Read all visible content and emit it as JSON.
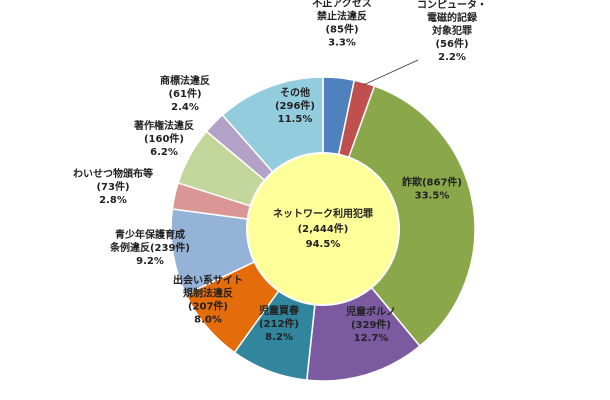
{
  "colors": {
    "background": "#ffffff",
    "center_fill": "#ffff99",
    "center_stroke": "#ffffff"
  },
  "chart_data": {
    "type": "pie",
    "style": "donut",
    "start_angle_deg": 0,
    "direction": "clockwise",
    "center": {
      "name": "ネットワーク利用犯罪",
      "count": "(2,444件)",
      "percent": "94.5%",
      "value": 94.5
    },
    "slices": [
      {
        "lines": [
          "不正アクセス",
          "禁止法違反",
          "(85件)",
          "3.3%"
        ],
        "value": 3.3,
        "color": "#4f81bd",
        "label_outside": true
      },
      {
        "lines": [
          "コンピュータ・",
          "電磁的記録",
          "対象犯罪",
          "(56件)",
          "2.2%"
        ],
        "value": 2.2,
        "color": "#c0504d",
        "label_outside": true
      },
      {
        "lines": [
          "詐欺(867件)",
          "33.5%"
        ],
        "value": 33.5,
        "color": "#8aa84a",
        "label_outside": false
      },
      {
        "lines": [
          "児童ポルノ",
          "(329件)",
          "12.7%"
        ],
        "value": 12.7,
        "color": "#7b5aa0",
        "label_outside": false
      },
      {
        "lines": [
          "児童買春",
          "(212件)",
          "8.2%"
        ],
        "value": 8.2,
        "color": "#31859c",
        "label_outside": false
      },
      {
        "lines": [
          "出会い系サイト",
          "規制法違反",
          "(207件)",
          "8.0%"
        ],
        "value": 8.0,
        "color": "#e46c0a",
        "label_outside": true
      },
      {
        "lines": [
          "青少年保護育成",
          "条例違反(239件)",
          "9.2%"
        ],
        "value": 9.2,
        "color": "#95b3d7",
        "label_outside": true
      },
      {
        "lines": [
          "わいせつ物頒布等",
          "(73件)",
          "2.8%"
        ],
        "value": 2.8,
        "color": "#d99694",
        "label_outside": true
      },
      {
        "lines": [
          "著作権法違反",
          "(160件)",
          "6.2%"
        ],
        "value": 6.2,
        "color": "#c3d69b",
        "label_outside": true
      },
      {
        "lines": [
          "商標法違反",
          "(61件)",
          "2.4%"
        ],
        "value": 2.4,
        "color": "#b3a2c7",
        "label_outside": true
      },
      {
        "lines": [
          "その他",
          "(296件)",
          "11.5%"
        ],
        "value": 11.5,
        "color": "#93cddd",
        "label_outside": false
      }
    ]
  }
}
